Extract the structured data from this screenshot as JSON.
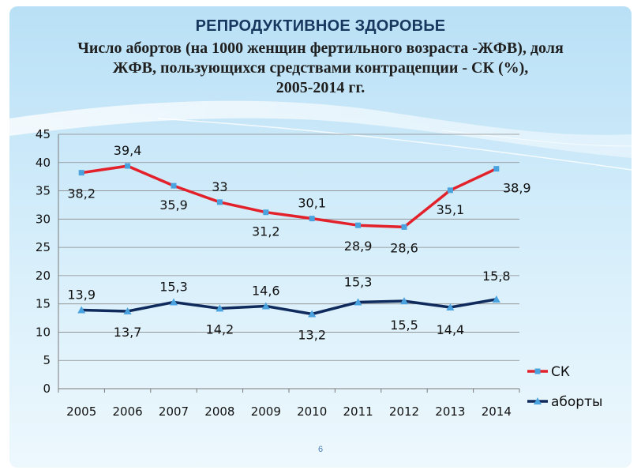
{
  "slide": {
    "title": "РЕПРОДУКТИВНОЕ ЗДОРОВЬЕ",
    "subtitle_lines": [
      "Число абортов  (на 1000 женщин фертильного возраста  -ЖФВ), доля",
      "ЖФВ, пользующихся средствами контрацепции - СК (%),",
      "2005-2014 гг."
    ],
    "page_number": "6"
  },
  "colors": {
    "sk": "#e3212a",
    "abortions": "#0f2a5c",
    "sk_marker": "#4aa3df",
    "abortions_marker": "#4aa3df",
    "title": "#17375e",
    "background_top": "#bfe3f7",
    "background_bottom": "#e7f5fc"
  },
  "chart_data": {
    "type": "line",
    "categories": [
      "2005",
      "2006",
      "2007",
      "2008",
      "2009",
      "2010",
      "2011",
      "2012",
      "2013",
      "2014"
    ],
    "ylim": [
      0,
      45
    ],
    "yticks": [
      "0",
      "5",
      "10",
      "15",
      "20",
      "25",
      "30",
      "35",
      "40",
      "45"
    ],
    "xlabel": "",
    "ylabel": "",
    "grid": true,
    "legend_position": "right",
    "series": [
      {
        "name": "СК",
        "values": [
          38.2,
          39.4,
          35.9,
          33,
          31.2,
          30.1,
          28.9,
          28.6,
          35.1,
          38.9
        ],
        "labels": [
          "38,2",
          "39,4",
          "35,9",
          "33",
          "31,2",
          "30,1",
          "28,9",
          "28,6",
          "35,1",
          "38,9"
        ],
        "marker": "square"
      },
      {
        "name": "аборты",
        "values": [
          13.9,
          13.7,
          15.3,
          14.2,
          14.6,
          13.2,
          15.3,
          15.5,
          14.4,
          15.8
        ],
        "labels": [
          "13,9",
          "13,7",
          "15,3",
          "14,2",
          "14,6",
          "13,2",
          "15,3",
          "15,5",
          "14,4",
          "15,8"
        ],
        "marker": "triangle"
      }
    ]
  }
}
